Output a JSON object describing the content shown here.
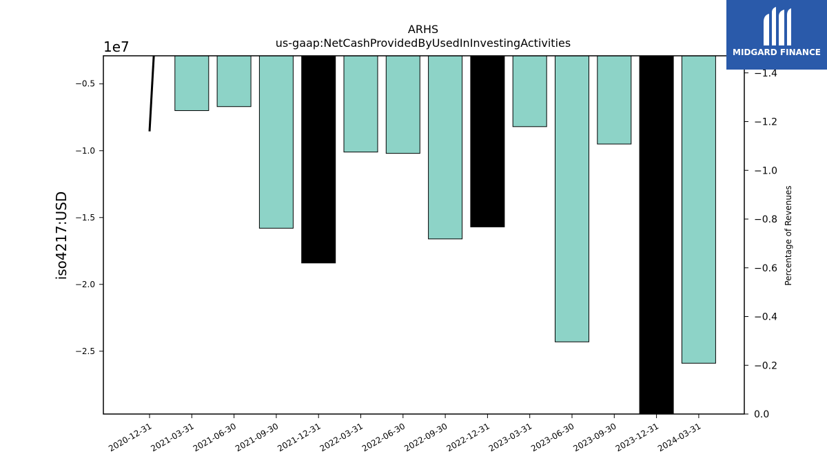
{
  "chart_data": {
    "type": "bar",
    "title": "ARHS",
    "subtitle": "us-gaap:NetCashProvidedByUsedInInvestingActivities",
    "ylabel": "iso4217:USD",
    "y_offset_label": "1e7",
    "y2label": "Percentage of Revenues",
    "categories": [
      "2020-12-31",
      "2021-03-31",
      "2021-06-30",
      "2021-09-30",
      "2021-12-31",
      "2022-03-31",
      "2022-06-30",
      "2022-09-30",
      "2022-12-31",
      "2023-03-31",
      "2023-06-30",
      "2023-09-30",
      "2023-12-31",
      "2024-03-31"
    ],
    "values": [
      null,
      -7000000,
      -6700000,
      -15800000,
      -18400000,
      -10100000,
      -10200000,
      -16600000,
      -15700000,
      -8200000,
      -24300000,
      -9500000,
      -30000000,
      -25900000
    ],
    "highlight": [
      false,
      false,
      false,
      false,
      true,
      false,
      false,
      false,
      true,
      false,
      false,
      false,
      true,
      false
    ],
    "ylim": [
      -29700000,
      -2900000
    ],
    "yticks": [
      -5000000,
      -10000000,
      -15000000,
      -20000000,
      -25000000
    ],
    "ytick_labels": [
      "−0.5",
      "−1.0",
      "−1.5",
      "−2.0",
      "−2.5"
    ],
    "y2lim": [
      0.0,
      -1.47
    ],
    "y2ticks": [
      -1.4,
      -1.2,
      -1.0,
      -0.8,
      -0.6,
      -0.4,
      -0.2,
      0.0
    ],
    "y2tick_labels": [
      "−1.4",
      "−1.2",
      "−1.0",
      "−0.8",
      "−0.6",
      "−0.4",
      "−0.2",
      "0.0"
    ],
    "line_series": {
      "x": [
        0,
        0.1
      ],
      "y2": [
        -1.16,
        -1.47
      ]
    },
    "bar_color": "#8dd3c7",
    "highlight_color": "#000000",
    "line_color": "#000000"
  },
  "logo": {
    "text": "MIDGARD FINANCE",
    "color": "#2a5aaa"
  }
}
